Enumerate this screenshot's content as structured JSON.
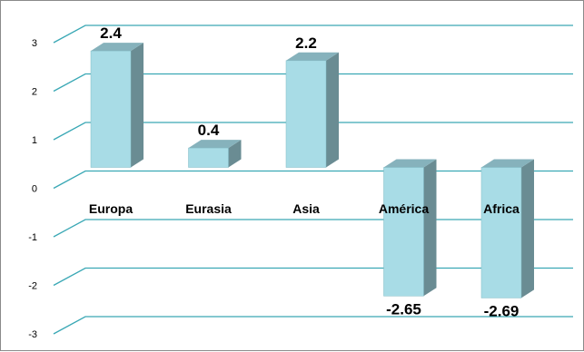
{
  "chart_data": {
    "type": "bar",
    "categories": [
      "Europa",
      "Eurasia",
      "Asia",
      "América",
      "Africa"
    ],
    "values": [
      2.4,
      0.4,
      2.2,
      -2.65,
      -2.69
    ],
    "data_labels": [
      "2.4",
      "0.4",
      "2.2",
      "-2.65",
      "-2.69"
    ],
    "y_ticks": [
      "3",
      "2",
      "1",
      "0",
      "-1",
      "-2",
      "-3"
    ],
    "ylim": [
      -3,
      3
    ],
    "grid": true,
    "legend": "none",
    "colors": {
      "bar_front": "#a8dce6",
      "bar_side": "#6a8c93",
      "bar_top": "#86b2bc",
      "gridline": "#3aa8b5"
    }
  }
}
